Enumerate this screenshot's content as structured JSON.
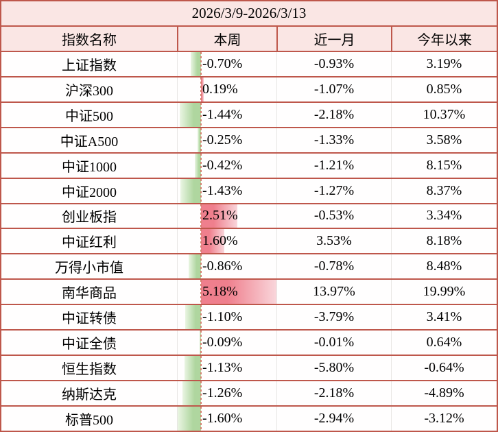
{
  "title": "2026/3/9-2026/3/13",
  "columns": [
    "指数名称",
    "本周",
    "近一月",
    "今年以来"
  ],
  "rows": [
    {
      "name": "上证指数",
      "week": "-0.70%",
      "month": "-0.93%",
      "ytd": "3.19%"
    },
    {
      "name": "沪深300",
      "week": "0.19%",
      "month": "-1.07%",
      "ytd": "0.85%"
    },
    {
      "name": "中证500",
      "week": "-1.44%",
      "month": "-2.18%",
      "ytd": "10.37%"
    },
    {
      "name": "中证A500",
      "week": "-0.25%",
      "month": "-1.33%",
      "ytd": "3.58%"
    },
    {
      "name": "中证1000",
      "week": "-0.42%",
      "month": "-1.21%",
      "ytd": "8.15%"
    },
    {
      "name": "中证2000",
      "week": "-1.43%",
      "month": "-1.27%",
      "ytd": "8.37%"
    },
    {
      "name": "创业板指",
      "week": "2.51%",
      "month": "-0.53%",
      "ytd": "3.34%"
    },
    {
      "name": "中证红利",
      "week": "1.60%",
      "month": "3.53%",
      "ytd": "8.18%"
    },
    {
      "name": "万得小市值",
      "week": "-0.86%",
      "month": "-0.78%",
      "ytd": "8.48%"
    },
    {
      "name": "南华商品",
      "week": "5.18%",
      "month": "13.97%",
      "ytd": "19.99%"
    },
    {
      "name": "中证转债",
      "week": "-1.10%",
      "month": "-3.79%",
      "ytd": "3.41%"
    },
    {
      "name": "中证全债",
      "week": "-0.09%",
      "month": "-0.01%",
      "ytd": "0.64%"
    },
    {
      "name": "恒生指数",
      "week": "-1.13%",
      "month": "-5.80%",
      "ytd": "-0.64%"
    },
    {
      "name": "纳斯达克",
      "week": "-1.26%",
      "month": "-2.18%",
      "ytd": "-4.89%"
    },
    {
      "name": "标普500",
      "week": "-1.60%",
      "month": "-2.94%",
      "ytd": "-3.12%"
    }
  ],
  "colors": {
    "border": "#be574b",
    "header_bg": "#fae6e4",
    "gridline": "#e8e6e4",
    "bar_negative": "#afd69f",
    "bar_negative_tip": "#eaf5e3",
    "bar_positive": "#ef7f8d",
    "bar_positive_tip": "#f9d6db",
    "axis_dash": "#d4826f"
  },
  "chart_data": {
    "type": "table",
    "title": "2026/3/9-2026/3/13",
    "columns": [
      "指数名称",
      "本周",
      "近一月",
      "今年以来"
    ],
    "databar_column": "本周",
    "databar_min": -1.6,
    "databar_max": 5.18,
    "week_values": [
      -0.7,
      0.19,
      -1.44,
      -0.25,
      -0.42,
      -1.43,
      2.51,
      1.6,
      -0.86,
      5.18,
      -1.1,
      -0.09,
      -1.13,
      -1.26,
      -1.6
    ],
    "month_values": [
      -0.93,
      -1.07,
      -2.18,
      -1.33,
      -1.21,
      -1.27,
      -0.53,
      3.53,
      -0.78,
      13.97,
      -3.79,
      -0.01,
      -5.8,
      -2.18,
      -2.94
    ],
    "ytd_values": [
      3.19,
      0.85,
      10.37,
      3.58,
      8.15,
      8.37,
      3.34,
      8.18,
      8.48,
      19.99,
      3.41,
      0.64,
      -0.64,
      -4.89,
      -3.12
    ]
  }
}
